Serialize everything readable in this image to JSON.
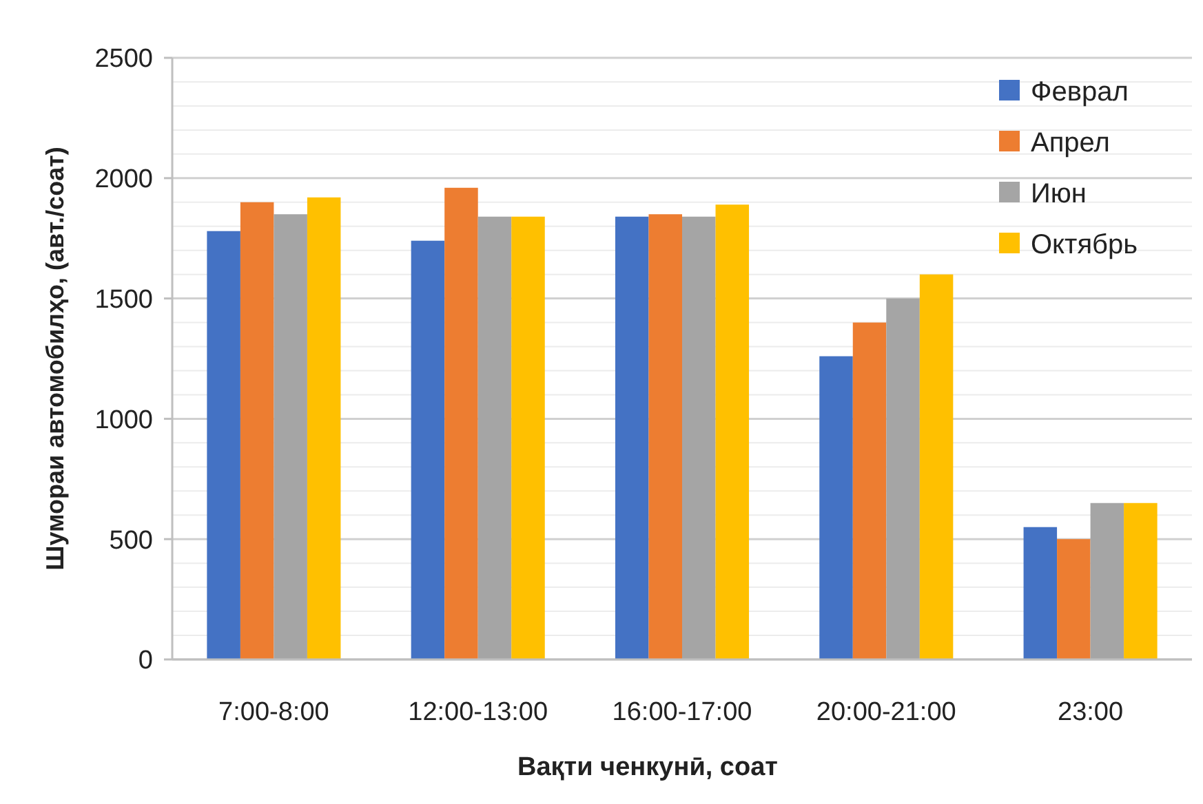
{
  "chart_data": {
    "type": "bar",
    "xlabel": "Вақти ченкунӣ, соат",
    "ylabel": "Шумораи автомобилҳо, (авт./соат)",
    "categories": [
      "7:00-8:00",
      "12:00-13:00",
      "16:00-17:00",
      "20:00-21:00",
      "23:00"
    ],
    "series": [
      {
        "name": "Феврал",
        "color": "#4472c4",
        "values": [
          1780,
          1740,
          1840,
          1260,
          550
        ]
      },
      {
        "name": "Апрел",
        "color": "#ed7d31",
        "values": [
          1900,
          1960,
          1850,
          1400,
          500
        ]
      },
      {
        "name": "Июн",
        "color": "#a5a5a5",
        "values": [
          1850,
          1840,
          1840,
          1500,
          650
        ]
      },
      {
        "name": "Октябрь",
        "color": "#ffc000",
        "values": [
          1920,
          1840,
          1890,
          1600,
          650
        ]
      }
    ],
    "ylim": [
      0,
      2500
    ],
    "yticks": [
      0,
      500,
      1000,
      1500,
      2000,
      2500
    ],
    "grid": "y",
    "legend": "top right"
  }
}
